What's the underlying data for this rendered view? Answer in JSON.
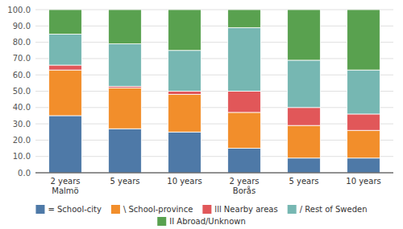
{
  "chart_data": {
    "type": "bar",
    "stacked": true,
    "grid": true,
    "legend": "bottom",
    "categories": [
      "2 years\nMalmö",
      "5 years",
      "10 years",
      "2 years\nBorås",
      "5 years",
      "10 years"
    ],
    "series": [
      {
        "name": "= School-city",
        "values": [
          35,
          27,
          25,
          15,
          9,
          9
        ]
      },
      {
        "name": "\\ School-province",
        "values": [
          28,
          25,
          23,
          22,
          20,
          17
        ]
      },
      {
        "name": "lll Nearby areas",
        "values": [
          3,
          1,
          2,
          13,
          11,
          10
        ]
      },
      {
        "name": "/ Rest of Sweden",
        "values": [
          19,
          26,
          25,
          39,
          29,
          27
        ]
      },
      {
        "name": "II Abroad/Unknown",
        "values": [
          15,
          21,
          25,
          11,
          31,
          37
        ]
      }
    ],
    "ylim": [
      0,
      100
    ],
    "yticks": [
      {
        "value": 0,
        "label": "0.0"
      },
      {
        "value": 10,
        "label": "10.0"
      },
      {
        "value": 20,
        "label": "20.0"
      },
      {
        "value": 30,
        "label": "30.0"
      },
      {
        "value": 40,
        "label": "40.0"
      },
      {
        "value": 50,
        "label": "50.0"
      },
      {
        "value": 60,
        "label": "60.0"
      },
      {
        "value": 70,
        "label": "70.0"
      },
      {
        "value": 80,
        "label": "80.0"
      },
      {
        "value": 90,
        "label": "90.0"
      },
      {
        "value": 100,
        "label": "100.0"
      }
    ]
  }
}
